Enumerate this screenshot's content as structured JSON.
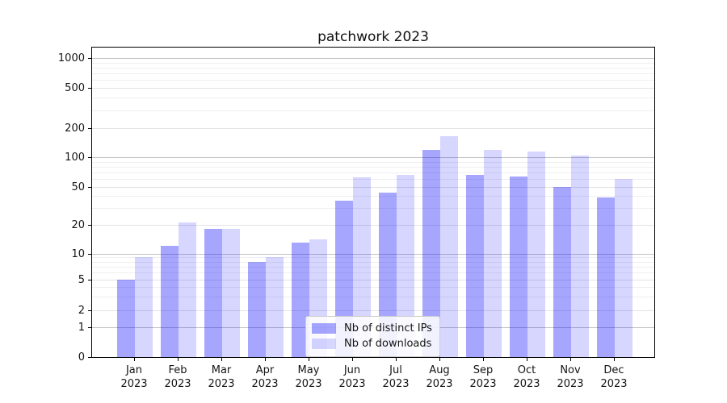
{
  "title": "patchwork 2023",
  "legend": {
    "items": [
      {
        "label": "Nb of distinct IPs",
        "color": "rgba(0,0,255,0.35)"
      },
      {
        "label": "Nb of downloads",
        "color": "rgba(0,0,255,0.16)"
      }
    ]
  },
  "chart_data": {
    "type": "bar",
    "title": "patchwork 2023",
    "categories": [
      "Jan 2023",
      "Feb 2023",
      "Mar 2023",
      "Apr 2023",
      "May 2023",
      "Jun 2023",
      "Jul 2023",
      "Aug 2023",
      "Sep 2023",
      "Oct 2023",
      "Nov 2023",
      "Dec 2023"
    ],
    "series": [
      {
        "name": "Nb of distinct IPs",
        "color": "rgba(0,0,255,0.35)",
        "values": [
          5,
          12,
          18,
          8,
          13,
          36,
          43,
          118,
          66,
          63,
          50,
          39
        ]
      },
      {
        "name": "Nb of downloads",
        "color": "rgba(0,0,255,0.16)",
        "values": [
          9,
          21,
          18,
          9,
          14,
          62,
          66,
          165,
          120,
          114,
          104,
          60
        ]
      }
    ],
    "xlabel": "",
    "ylabel": "",
    "yscale": "symlog",
    "yticks": [
      0,
      1,
      2,
      5,
      10,
      20,
      50,
      100,
      200,
      500,
      1000
    ],
    "ylim": [
      0,
      1300
    ],
    "grid": true,
    "legend_position": "lower center"
  }
}
